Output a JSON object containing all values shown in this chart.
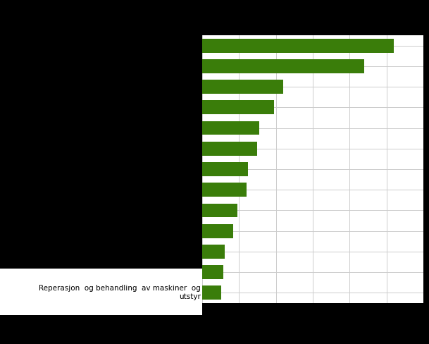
{
  "categories": [
    "",
    "",
    "",
    "",
    "",
    "",
    "",
    "",
    "",
    "",
    "",
    "",
    "Reperasjon  og behandling  av maskiner  og\nutstyr"
  ],
  "values": [
    5200,
    4400,
    2200,
    1950,
    1550,
    1500,
    1250,
    1200,
    950,
    850,
    620,
    580,
    520
  ],
  "bar_color": "#3a7d0a",
  "background_color": "#000000",
  "plot_bg_color": "#ffffff",
  "grid_color": "#cccccc",
  "xlim_max": 6000,
  "label_fontsize": 7.5,
  "tick_fontsize": 8,
  "bar_height": 0.68
}
